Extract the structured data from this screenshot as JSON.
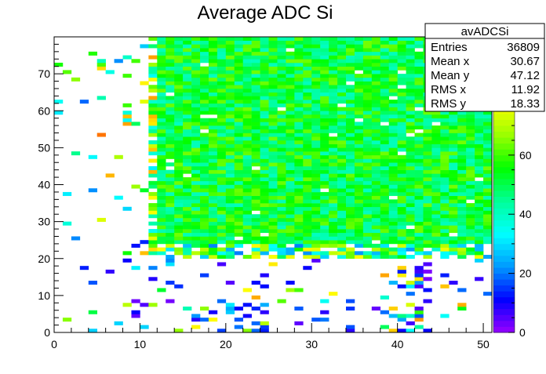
{
  "chart_data": {
    "type": "heatmap",
    "title": "Average ADC Si",
    "xlabel": "",
    "ylabel": "",
    "x_range": [
      0,
      51
    ],
    "y_range": [
      0,
      80
    ],
    "x_ticks": [
      0,
      10,
      20,
      30,
      40,
      50
    ],
    "y_ticks": [
      0,
      10,
      20,
      30,
      40,
      50,
      60,
      70
    ],
    "z_range": [
      0,
      100
    ],
    "z_ticks": [
      0,
      20,
      40,
      60,
      80
    ],
    "bins_x": 51,
    "bins_y": 80,
    "palette": [
      "#9900ff",
      "#0000ff",
      "#0099ff",
      "#00ffff",
      "#00ff99",
      "#00ff00",
      "#99ff00",
      "#ffff00",
      "#ff9900",
      "#ff0000"
    ],
    "bin_description": "Dense band of ~40-70 (cyan/green) for x 12-51, y 20-80; sparse low-density hits below y=20 and x<12.",
    "stats_box": {
      "name": "avADCSi",
      "rows": [
        {
          "label": "Entries",
          "value": "36809"
        },
        {
          "label": "Mean x",
          "value": "30.67"
        },
        {
          "label": "Mean y",
          "value": "47.12"
        },
        {
          "label": "RMS x",
          "value": "11.92"
        },
        {
          "label": "RMS y",
          "value": "18.33"
        }
      ]
    }
  }
}
